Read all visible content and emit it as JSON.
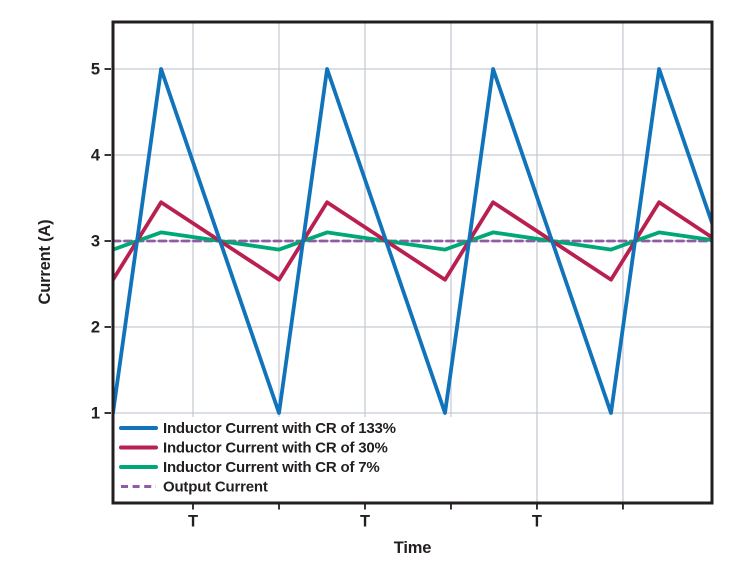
{
  "figure": {
    "title": "",
    "ylabel": "Current (A)",
    "xlabel": "Time",
    "y_tick_labels": [
      "5",
      "4",
      "3",
      "2",
      "1"
    ],
    "x_tick_labels": [
      "T",
      "T",
      "T"
    ]
  },
  "chart_data": {
    "type": "line",
    "title": "",
    "xlabel": "Time",
    "ylabel": "Current (A)",
    "x_units": "multiples of switching period T",
    "xlim": [
      0,
      3.61
    ],
    "ylim": [
      -0.05,
      5.55
    ],
    "grid": true,
    "legend_position": "lower left",
    "output_current_A": 3,
    "x": [
      0,
      0.29,
      1,
      1.29,
      2,
      2.29,
      3,
      3.29,
      3.61
    ],
    "series": [
      {
        "name": "Inductor Current with CR of 133%",
        "color": "#1173BA",
        "dashed": false,
        "values": [
          1,
          5,
          1,
          5,
          1,
          5,
          1,
          5,
          3.2
        ]
      },
      {
        "name": "Inductor Current with CR of 30%",
        "color": "#B9204F",
        "dashed": false,
        "values": [
          2.55,
          3.45,
          2.55,
          3.45,
          2.55,
          3.45,
          2.55,
          3.45,
          3.04
        ]
      },
      {
        "name": "Inductor Current with CR of 7%",
        "color": "#00A878",
        "dashed": false,
        "values": [
          2.9,
          3.1,
          2.9,
          3.1,
          2.9,
          3.1,
          2.9,
          3.1,
          3.01
        ]
      },
      {
        "name": "Output Current",
        "color": "#915BA4",
        "dashed": true,
        "values": [
          3,
          3,
          3,
          3,
          3,
          3,
          3,
          3,
          3
        ]
      }
    ],
    "y_tick_values": [
      5,
      4,
      3,
      2,
      1
    ],
    "x_gridlines_T": [
      0.482,
      1.0,
      1.518,
      2.036,
      2.554,
      3.072
    ],
    "x_tick_label_positions_T": [
      0.482,
      1.518,
      2.554
    ]
  },
  "colors": {
    "background": "#FFFFFF",
    "plot_border": "#231F20",
    "grid": "#C8CBD5",
    "text": "#231F20",
    "series_blue": "#1173BA",
    "series_crimson": "#B9204F",
    "series_green": "#00A878",
    "series_purple": "#915BA4"
  }
}
